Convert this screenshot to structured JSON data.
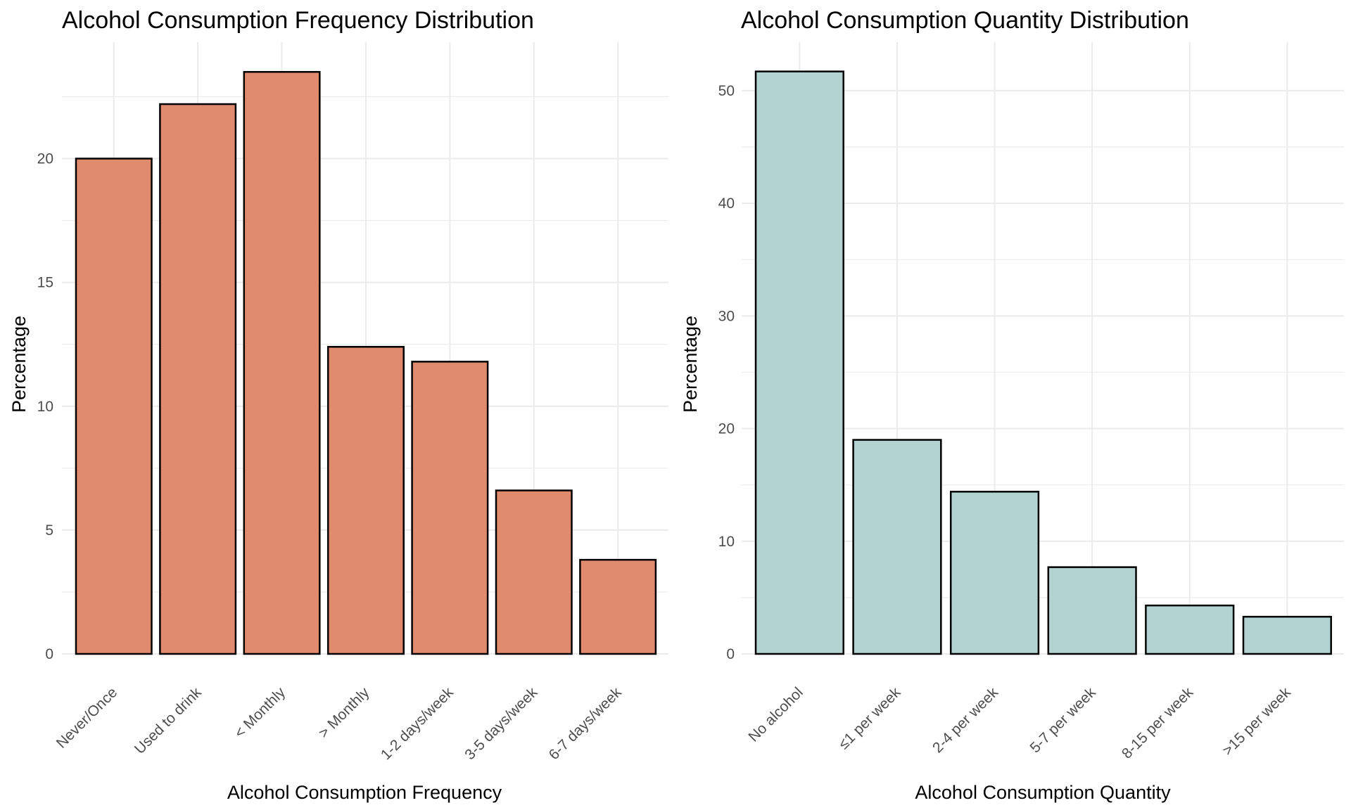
{
  "chart_data": [
    {
      "type": "bar",
      "title": "Alcohol Consumption Frequency Distribution",
      "xlabel": "Alcohol Consumption Frequency",
      "ylabel": "Percentage",
      "categories": [
        "Never/Once",
        "Used to drink",
        "< Monthly",
        "> Monthly",
        "1-2 days/week",
        "3-5 days/week",
        "6-7 days/week"
      ],
      "values": [
        20.0,
        22.2,
        23.5,
        12.4,
        11.8,
        6.6,
        3.8
      ],
      "yticks": [
        0,
        5,
        10,
        15,
        20
      ],
      "ylim": [
        0,
        24.7
      ],
      "fill": "#E08B6D",
      "grid": true,
      "legend": "none"
    },
    {
      "type": "bar",
      "title": "Alcohol Consumption Quantity Distribution",
      "xlabel": "Alcohol Consumption Quantity",
      "ylabel": "Percentage",
      "categories": [
        "No alcohol",
        "≤1 per week",
        "2-4 per week",
        "5-7 per week",
        "8-15 per week",
        ">15 per week"
      ],
      "values": [
        51.7,
        19.0,
        14.4,
        7.7,
        4.3,
        3.3
      ],
      "yticks": [
        0,
        10,
        20,
        30,
        40,
        50
      ],
      "ylim": [
        0,
        54.3
      ],
      "fill": "#B3D3D2",
      "grid": true,
      "legend": "none"
    }
  ]
}
